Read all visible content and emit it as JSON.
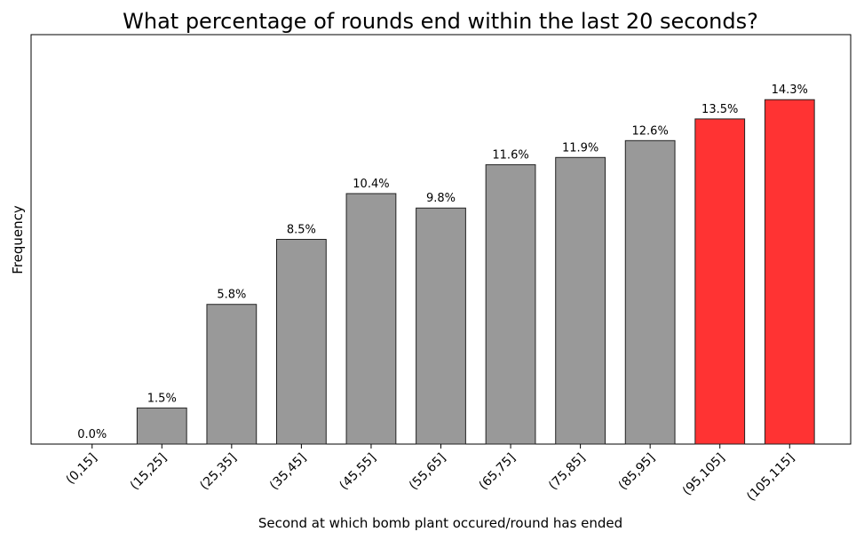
{
  "chart_data": {
    "type": "bar",
    "title": "What percentage of rounds end within the last 20 seconds?",
    "x_label": "Second at which bomb plant occured/round has ended",
    "y_label": "Frequency",
    "categories": [
      "(0,15]",
      "(15,25]",
      "(25,35]",
      "(35,45]",
      "(45,55]",
      "(55,65]",
      "(65,75]",
      "(75,85]",
      "(85,95]",
      "(95,105]",
      "(105,115]"
    ],
    "values": [
      0.0,
      1.5,
      5.8,
      8.5,
      10.4,
      9.8,
      11.6,
      11.9,
      12.6,
      13.5,
      14.3
    ],
    "value_labels": [
      "0.0%",
      "1.5%",
      "5.8%",
      "8.5%",
      "10.4%",
      "9.8%",
      "11.6%",
      "11.9%",
      "12.6%",
      "13.5%",
      "14.3%"
    ],
    "colors": [
      "#999999",
      "#999999",
      "#999999",
      "#999999",
      "#999999",
      "#999999",
      "#999999",
      "#999999",
      "#999999",
      "#ff3333",
      "#ff3333"
    ],
    "ylim": [
      0,
      17
    ]
  }
}
